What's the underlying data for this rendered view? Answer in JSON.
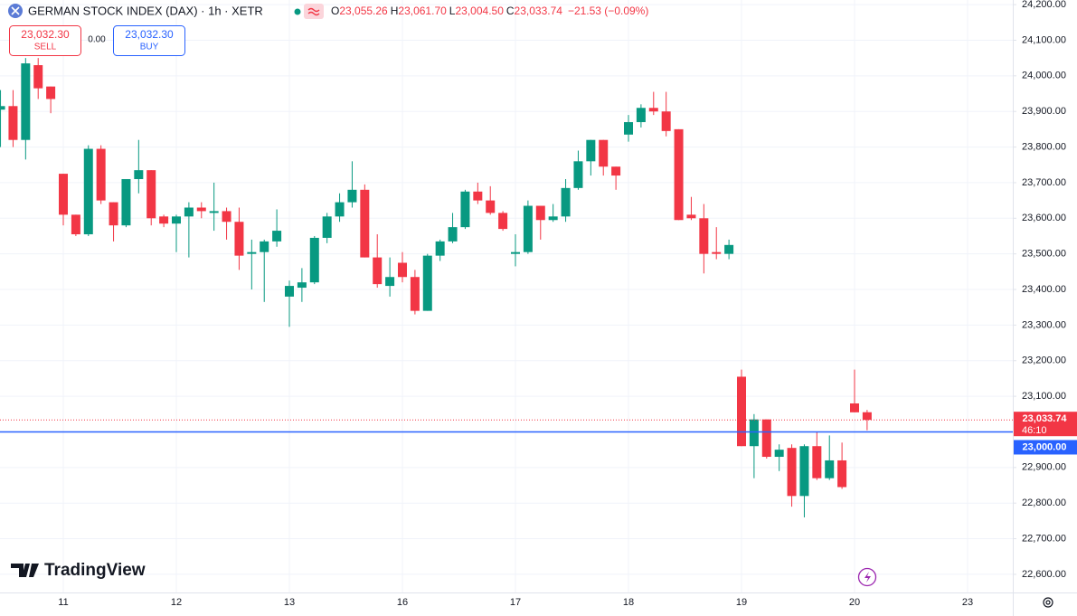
{
  "header": {
    "title": "GERMAN STOCK INDEX (DAX) · 1h · XETR",
    "ohlc": [
      {
        "key": "O",
        "value": "23,055.26"
      },
      {
        "key": "H",
        "value": "23,061.70"
      },
      {
        "key": "L",
        "value": "23,004.50"
      },
      {
        "key": "C",
        "value": "23,033.74"
      }
    ],
    "change": "−21.53 (−0.09%)"
  },
  "trade": {
    "sell_price": "23,032.30",
    "sell": "SELL",
    "spread": "0.00",
    "buy_price": "23,032.30",
    "buy": "BUY"
  },
  "branding": "TradingView",
  "chart_data": {
    "type": "candlestick",
    "categories": [
      null,
      null,
      null,
      null,
      null,
      "11",
      null,
      null,
      null,
      null,
      null,
      null,
      null,
      null,
      "12",
      null,
      null,
      null,
      null,
      null,
      null,
      null,
      null,
      "13",
      null,
      null,
      null,
      null,
      null,
      null,
      null,
      null,
      "16",
      null,
      null,
      null,
      null,
      null,
      null,
      null,
      null,
      "17",
      null,
      null,
      null,
      null,
      null,
      null,
      null,
      null,
      "18",
      null,
      null,
      null,
      null,
      null,
      null,
      null,
      null,
      "19",
      null,
      null,
      null,
      null,
      null,
      null,
      null,
      null,
      "20",
      null,
      null,
      null,
      null,
      null,
      null,
      null,
      null,
      "23"
    ],
    "series": [
      {
        "up_color": "#089981",
        "down_color": "#f23645",
        "open": [
          23905,
          23915,
          23820,
          24030,
          23970,
          23725,
          23610,
          23555,
          23795,
          23645,
          23580,
          23710,
          23735,
          23605,
          23585,
          23605,
          23630,
          23615,
          23620,
          23590,
          23500,
          23505,
          23535,
          23380,
          23405,
          23420,
          23545,
          23605,
          23645,
          23680,
          23490,
          23410,
          23475,
          23435,
          23340,
          23495,
          23535,
          23575,
          23675,
          23650,
          23615,
          23500,
          23505,
          23635,
          23595,
          23605,
          23685,
          23760,
          23820,
          23745,
          23835,
          23870,
          23910,
          23900,
          23850,
          23610,
          23600,
          23505,
          23500,
          23155,
          22960,
          23035,
          22930,
          22955,
          22820,
          22960,
          22870,
          22920,
          23080,
          23055.26,
          null,
          null,
          null,
          null,
          null,
          null,
          null,
          null
        ],
        "high": [
          23960,
          23960,
          24050,
          24050,
          23970,
          23725,
          23610,
          23805,
          23805,
          23645,
          23710,
          23820,
          23735,
          23610,
          23610,
          23645,
          23645,
          23700,
          23630,
          23630,
          23540,
          23540,
          23625,
          23425,
          23460,
          23550,
          23615,
          23670,
          23760,
          23695,
          23555,
          23490,
          23505,
          23455,
          23500,
          23540,
          23615,
          23680,
          23700,
          23690,
          23620,
          23555,
          23650,
          23635,
          23640,
          23710,
          23790,
          23820,
          23820,
          23745,
          23890,
          23920,
          23955,
          23955,
          23850,
          23660,
          23640,
          23575,
          23540,
          23175,
          23050,
          23035,
          22965,
          22965,
          22965,
          23000,
          22990,
          22970,
          23175,
          23061.7,
          null,
          null,
          null,
          null,
          null,
          null,
          null,
          null
        ],
        "low": [
          23800,
          23800,
          23765,
          23935,
          23895,
          23580,
          23550,
          23550,
          23640,
          23535,
          23575,
          23670,
          23580,
          23575,
          23505,
          23490,
          23600,
          23565,
          23540,
          23455,
          23400,
          23365,
          23520,
          23295,
          23365,
          23415,
          23530,
          23590,
          23630,
          23490,
          23405,
          23380,
          23420,
          23330,
          23340,
          23480,
          23530,
          23570,
          23640,
          23610,
          23565,
          23465,
          23500,
          23540,
          23590,
          23590,
          23680,
          23720,
          23720,
          23680,
          23815,
          23855,
          23890,
          23830,
          23595,
          23595,
          23445,
          23485,
          23485,
          22960,
          22870,
          22925,
          22890,
          22790,
          22760,
          22865,
          22865,
          22840,
          23055,
          23004.5,
          null,
          null,
          null,
          null,
          null,
          null,
          null,
          null
        ],
        "close": [
          23915,
          23820,
          24035,
          23965,
          23935,
          23610,
          23555,
          23795,
          23650,
          23580,
          23710,
          23735,
          23600,
          23585,
          23605,
          23630,
          23620,
          23620,
          23590,
          23495,
          23505,
          23535,
          23565,
          23410,
          23420,
          23545,
          23605,
          23645,
          23680,
          23490,
          23415,
          23435,
          23435,
          23340,
          23495,
          23535,
          23575,
          23675,
          23650,
          23615,
          23570,
          23505,
          23635,
          23595,
          23605,
          23685,
          23760,
          23820,
          23745,
          23720,
          23870,
          23910,
          23900,
          23845,
          23595,
          23600,
          23500,
          23500,
          23525,
          22960,
          23035,
          22930,
          22950,
          22820,
          22960,
          22870,
          22920,
          22845,
          23055,
          23033.74,
          null,
          null,
          null,
          null,
          null,
          null,
          null,
          null
        ]
      }
    ],
    "ylim": [
      22549,
      24213
    ],
    "yticks": [
      {
        "value": 22600,
        "label": "22,600.00"
      },
      {
        "value": 22700,
        "label": "22,700.00"
      },
      {
        "value": 22800,
        "label": "22,800.00"
      },
      {
        "value": 22900,
        "label": "22,900.00"
      },
      {
        "value": 23000,
        "label": "23,000.00"
      },
      {
        "value": 23100,
        "label": "23,100.00"
      },
      {
        "value": 23200,
        "label": "23,200.00"
      },
      {
        "value": 23300,
        "label": "23,300.00"
      },
      {
        "value": 23400,
        "label": "23,400.00"
      },
      {
        "value": 23500,
        "label": "23,500.00"
      },
      {
        "value": 23600,
        "label": "23,600.00"
      },
      {
        "value": 23700,
        "label": "23,700.00"
      },
      {
        "value": 23800,
        "label": "23,800.00"
      },
      {
        "value": 23900,
        "label": "23,900.00"
      },
      {
        "value": 24000,
        "label": "24,000.00"
      },
      {
        "value": 24100,
        "label": "24,100.00"
      },
      {
        "value": 24200,
        "label": "24,200.00"
      }
    ],
    "grid": true,
    "last_price": {
      "value": 23033.74,
      "label": "23,033.74",
      "countdown": "46:10",
      "color": "#f23645"
    },
    "price_line": {
      "value": 23000,
      "label": "23,000.00",
      "color": "#2962ff"
    }
  }
}
